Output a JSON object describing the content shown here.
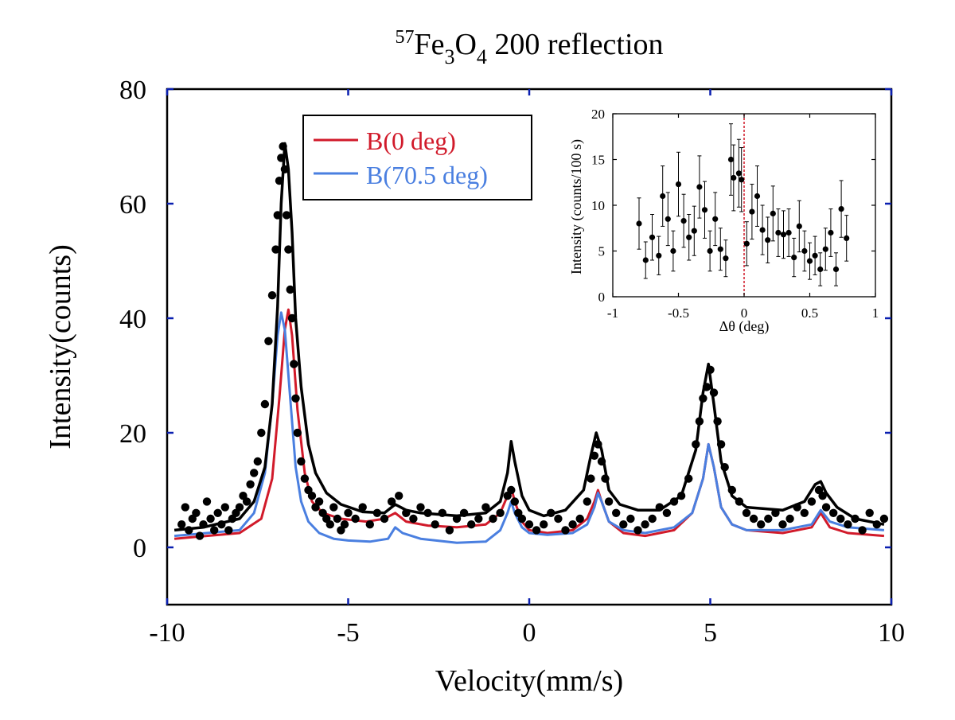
{
  "chart_data": [
    {
      "type": "scatter",
      "title": {
        "prefix": "57",
        "main": "Fe",
        "sub1": "3",
        "mid": "O",
        "sub2": "4",
        "rest": " 200 reflection"
      },
      "xlabel": "Velocity(mm/s)",
      "ylabel": "Intensity(counts)",
      "xlim": [
        -10,
        10
      ],
      "ylim": [
        -10,
        80
      ],
      "xticks": [
        -10,
        -5,
        0,
        5,
        10
      ],
      "yticks": [
        0,
        20,
        40,
        60,
        80
      ],
      "legend_position": "top-center",
      "series": [
        {
          "name": "",
          "kind": "points",
          "color": "#000000",
          "x": [
            -9.6,
            -9.5,
            -9.4,
            -9.3,
            -9.2,
            -9.1,
            -9.0,
            -8.9,
            -8.8,
            -8.7,
            -8.6,
            -8.5,
            -8.4,
            -8.3,
            -8.2,
            -8.1,
            -8.0,
            -7.9,
            -7.8,
            -7.7,
            -7.6,
            -7.5,
            -7.4,
            -7.3,
            -7.2,
            -7.1,
            -7.0,
            -6.95,
            -6.9,
            -6.85,
            -6.8,
            -6.75,
            -6.7,
            -6.65,
            -6.6,
            -6.55,
            -6.5,
            -6.45,
            -6.4,
            -6.3,
            -6.2,
            -6.1,
            -6.0,
            -5.9,
            -5.8,
            -5.7,
            -5.6,
            -5.5,
            -5.4,
            -5.3,
            -5.2,
            -5.1,
            -5.0,
            -4.8,
            -4.6,
            -4.4,
            -4.2,
            -4.0,
            -3.8,
            -3.6,
            -3.4,
            -3.2,
            -3.0,
            -2.8,
            -2.6,
            -2.4,
            -2.2,
            -2.0,
            -1.8,
            -1.6,
            -1.4,
            -1.2,
            -1.0,
            -0.8,
            -0.6,
            -0.5,
            -0.4,
            -0.3,
            -0.2,
            0.0,
            0.2,
            0.4,
            0.6,
            0.8,
            1.0,
            1.2,
            1.4,
            1.6,
            1.7,
            1.8,
            1.9,
            2.0,
            2.1,
            2.2,
            2.4,
            2.6,
            2.8,
            3.0,
            3.2,
            3.4,
            3.6,
            3.8,
            4.0,
            4.2,
            4.4,
            4.6,
            4.7,
            4.8,
            4.9,
            5.0,
            5.1,
            5.2,
            5.3,
            5.4,
            5.6,
            5.8,
            6.0,
            6.2,
            6.4,
            6.6,
            6.8,
            7.0,
            7.2,
            7.4,
            7.6,
            7.8,
            8.0,
            8.1,
            8.2,
            8.4,
            8.6,
            8.8,
            9.0,
            9.2,
            9.4,
            9.6,
            9.8
          ],
          "y": [
            4,
            7,
            3,
            5,
            6,
            2,
            4,
            8,
            5,
            3,
            6,
            4,
            7,
            3,
            5,
            6,
            7,
            9,
            8,
            11,
            13,
            15,
            20,
            25,
            36,
            44,
            52,
            58,
            64,
            68,
            70,
            66,
            58,
            52,
            45,
            40,
            32,
            26,
            20,
            15,
            12,
            10,
            9,
            7,
            8,
            6,
            5,
            4,
            7,
            5,
            3,
            4,
            6,
            5,
            7,
            4,
            6,
            5,
            8,
            9,
            6,
            5,
            7,
            6,
            4,
            6,
            3,
            5,
            6,
            4,
            5,
            7,
            5,
            6,
            9,
            10,
            8,
            6,
            5,
            4,
            3,
            4,
            6,
            5,
            3,
            4,
            5,
            8,
            12,
            16,
            18,
            15,
            12,
            8,
            6,
            4,
            5,
            3,
            4,
            5,
            7,
            6,
            8,
            9,
            12,
            18,
            22,
            26,
            28,
            31,
            27,
            22,
            18,
            14,
            10,
            8,
            6,
            5,
            4,
            5,
            6,
            4,
            5,
            7,
            6,
            8,
            10,
            9,
            7,
            6,
            5,
            4,
            5,
            3,
            6,
            4,
            5
          ]
        },
        {
          "name": "",
          "kind": "line",
          "color": "#000000",
          "x": [
            -9.8,
            -9.0,
            -8.0,
            -7.6,
            -7.3,
            -7.1,
            -6.95,
            -6.85,
            -6.75,
            -6.65,
            -6.55,
            -6.45,
            -6.3,
            -6.1,
            -5.9,
            -5.6,
            -5.2,
            -4.6,
            -4.0,
            -3.7,
            -3.4,
            -3.0,
            -2.0,
            -1.2,
            -0.8,
            -0.6,
            -0.5,
            -0.4,
            -0.2,
            0.0,
            0.4,
            1.0,
            1.5,
            1.7,
            1.85,
            2.0,
            2.2,
            2.5,
            3.0,
            3.6,
            4.2,
            4.6,
            4.8,
            4.95,
            5.1,
            5.3,
            5.6,
            6.0,
            7.0,
            7.6,
            7.9,
            8.05,
            8.2,
            8.5,
            9.0,
            9.8
          ],
          "y": [
            3,
            3.5,
            5,
            8,
            14,
            25,
            42,
            60,
            70.5,
            66,
            55,
            40,
            28,
            18,
            13,
            9.5,
            7.5,
            6.2,
            6,
            7.5,
            6.5,
            6,
            5.5,
            6,
            8,
            13,
            18.5,
            15,
            9,
            6.5,
            5.5,
            6.5,
            10,
            16,
            20,
            17,
            10,
            7.5,
            6.5,
            6.5,
            9,
            17,
            27,
            32,
            25,
            15,
            9,
            7,
            6.5,
            8,
            11,
            11.5,
            9.5,
            7,
            5,
            4
          ]
        },
        {
          "name": "B(0 deg)",
          "kind": "line",
          "color": "#d11a2a",
          "x": [
            -9.8,
            -8.0,
            -7.4,
            -7.1,
            -6.9,
            -6.75,
            -6.65,
            -6.55,
            -6.4,
            -6.2,
            -6.0,
            -5.7,
            -5.2,
            -4.5,
            -4.0,
            -3.7,
            -3.4,
            -2.8,
            -2.0,
            -1.2,
            -0.8,
            -0.6,
            -0.5,
            -0.4,
            -0.2,
            0.0,
            0.5,
            1.2,
            1.6,
            1.8,
            1.9,
            2.0,
            2.2,
            2.6,
            3.2,
            4.0,
            4.5,
            4.8,
            4.95,
            5.1,
            5.3,
            5.6,
            6.0,
            7.0,
            7.8,
            8.05,
            8.3,
            8.8,
            9.8
          ],
          "y": [
            1.5,
            2.5,
            5,
            12,
            26,
            38,
            41.5,
            37,
            24,
            13,
            8,
            6,
            5,
            4.5,
            5,
            6,
            4.5,
            3.8,
            3.5,
            4,
            6,
            9,
            10.5,
            8,
            4.5,
            3,
            2.5,
            3,
            5,
            8,
            10,
            8,
            4.5,
            2.5,
            2,
            3,
            6,
            12,
            18,
            14,
            7,
            4,
            3,
            2.5,
            3.5,
            6,
            3.5,
            2.5,
            2
          ]
        },
        {
          "name": "B(70.5 deg)",
          "kind": "line",
          "color": "#4a7fe0",
          "x": [
            -9.8,
            -8.0,
            -7.6,
            -7.3,
            -7.1,
            -6.95,
            -6.85,
            -6.75,
            -6.6,
            -6.45,
            -6.3,
            -6.1,
            -5.8,
            -5.4,
            -5.0,
            -4.4,
            -3.9,
            -3.7,
            -3.5,
            -3.0,
            -2.0,
            -1.2,
            -0.8,
            -0.6,
            -0.5,
            -0.4,
            -0.2,
            0.0,
            0.5,
            1.2,
            1.6,
            1.8,
            1.9,
            2.0,
            2.2,
            2.6,
            3.2,
            4.0,
            4.5,
            4.8,
            4.95,
            5.1,
            5.3,
            5.6,
            6.0,
            7.0,
            7.8,
            8.05,
            8.3,
            8.8,
            9.8
          ],
          "y": [
            2,
            3,
            6,
            13,
            25,
            37,
            41,
            38,
            26,
            14,
            8,
            4.5,
            2.5,
            1.5,
            1.2,
            1,
            1.5,
            3.5,
            2.5,
            1.5,
            0.8,
            1,
            3,
            6,
            8,
            6,
            3.5,
            2.5,
            2.2,
            2.5,
            4,
            7,
            9.5,
            8,
            4.5,
            3,
            2.5,
            3.5,
            6,
            12,
            18,
            14,
            7,
            4,
            3,
            3,
            4,
            6.5,
            4.5,
            3.5,
            3
          ]
        }
      ]
    },
    {
      "type": "scatter",
      "title": "",
      "xlabel": "Δθ (deg)",
      "ylabel": "Intensity (counts/100 s)",
      "xlim": [
        -1,
        1
      ],
      "ylim": [
        0,
        20
      ],
      "xticks": [
        "-1",
        "-0.5",
        "0",
        "0.5",
        "1"
      ],
      "xtick_values": [
        -1,
        -0.5,
        0,
        0.5,
        1
      ],
      "yticks": [
        0,
        5,
        10,
        15,
        20
      ],
      "reference_line": {
        "x": 0,
        "color": "#d11a2a",
        "style": "dashed"
      },
      "series": [
        {
          "name": "",
          "kind": "errorbar",
          "color": "#000000",
          "x": [
            -0.8,
            -0.75,
            -0.7,
            -0.65,
            -0.62,
            -0.58,
            -0.54,
            -0.5,
            -0.46,
            -0.42,
            -0.38,
            -0.34,
            -0.3,
            -0.26,
            -0.22,
            -0.18,
            -0.14,
            -0.1,
            -0.08,
            -0.04,
            -0.02,
            0.02,
            0.06,
            0.1,
            0.14,
            0.18,
            0.22,
            0.26,
            0.3,
            0.34,
            0.38,
            0.42,
            0.46,
            0.5,
            0.54,
            0.58,
            0.62,
            0.66,
            0.7,
            0.74,
            0.78
          ],
          "y": [
            8,
            4,
            6.5,
            4.5,
            11,
            8.5,
            5,
            12.3,
            8.3,
            6.5,
            7.2,
            12,
            9.5,
            5,
            8.5,
            5.2,
            4.2,
            15,
            13,
            13.5,
            12.8,
            5.8,
            9.3,
            11,
            7.3,
            6.2,
            9.1,
            7,
            6.8,
            7,
            4.3,
            7.7,
            5,
            3.9,
            4.5,
            3,
            5.2,
            7,
            3,
            9.6,
            6.4
          ],
          "err": [
            2.8,
            2,
            2.5,
            2.1,
            3.3,
            2.9,
            2.2,
            3.5,
            2.9,
            2.5,
            2.7,
            3.4,
            3.1,
            2.2,
            2.9,
            2.3,
            2,
            3.9,
            3.6,
            3.7,
            3.5,
            2.4,
            3,
            3.3,
            2.7,
            2.5,
            3,
            2.6,
            2.6,
            2.6,
            2.1,
            2.8,
            2.2,
            2,
            2.1,
            1.8,
            2.3,
            2.6,
            1.8,
            3.1,
            2.5
          ]
        }
      ]
    }
  ]
}
